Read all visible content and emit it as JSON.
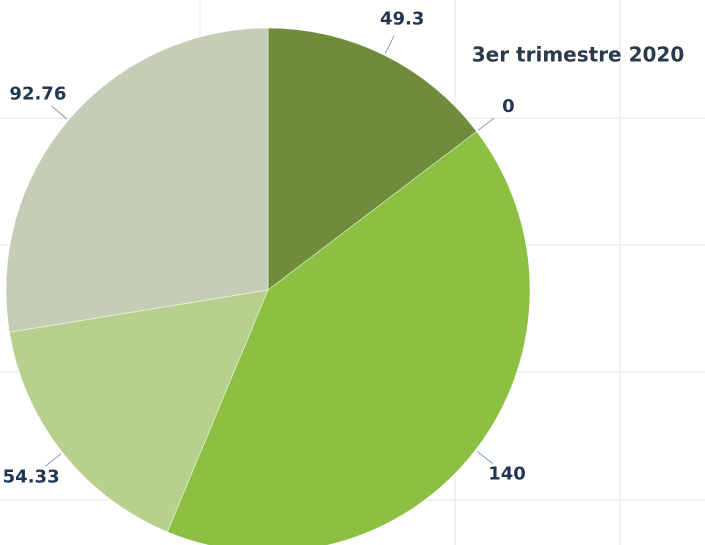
{
  "chart_data": {
    "type": "pie",
    "title": "3er trimestre 2020",
    "values": [
      49.3,
      0,
      140,
      54.33,
      92.76
    ],
    "colors": [
      "#6e8c3c",
      "#7fa83a",
      "#8cc043",
      "#b7d08e",
      "#c6cdb7"
    ]
  }
}
